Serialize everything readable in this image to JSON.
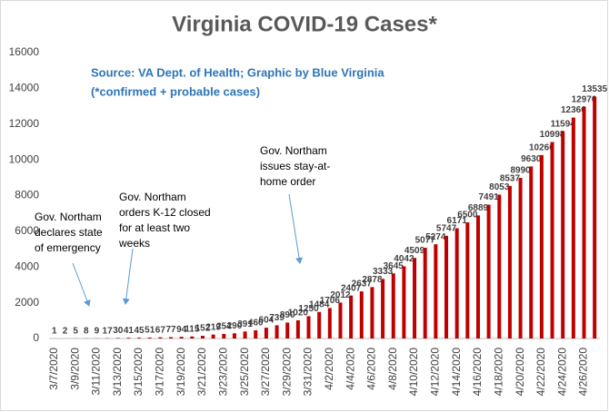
{
  "chart_data": {
    "type": "bar",
    "title": "Virginia COVID-19 Cases*",
    "subtitle": [
      "Source: VA Dept. of Health; Graphic by Blue Virginia",
      "(*confirmed + probable cases)"
    ],
    "categories": [
      "3/7/2020",
      null,
      "3/9/2020",
      null,
      "3/11/2020",
      null,
      "3/13/2020",
      null,
      "3/15/2020",
      null,
      "3/17/2020",
      null,
      "3/19/2020",
      null,
      "3/21/2020",
      null,
      "3/23/2020",
      null,
      "3/25/2020",
      null,
      "3/27/2020",
      null,
      "3/29/2020",
      null,
      "3/31/2020",
      null,
      "4/2/2020",
      null,
      "4/4/2020",
      null,
      "4/6/2020",
      null,
      "4/8/2020",
      null,
      "4/10/2020",
      null,
      "4/12/2020",
      null,
      "4/14/2020",
      null,
      "4/16/2020",
      null,
      "4/18/2020",
      null,
      "4/20/2020",
      null,
      "4/22/2020",
      null,
      "4/24/2020",
      null,
      "4/26/2020",
      null
    ],
    "values": [
      1,
      2,
      5,
      8,
      9,
      17,
      30,
      41,
      45,
      51,
      67,
      77,
      94,
      115,
      152,
      219,
      254,
      290,
      391,
      460,
      604,
      739,
      890,
      1020,
      1250,
      1484,
      1706,
      2012,
      2407,
      2637,
      2878,
      3333,
      3645,
      4042,
      4509,
      5077,
      5274,
      5747,
      6171,
      6500,
      6889,
      7491,
      8053,
      8537,
      8990,
      9630,
      10266,
      10998,
      11594,
      12366,
      12970,
      13535
    ],
    "color": "#c00000",
    "ylim": [
      0,
      16000
    ],
    "yticks": [
      0,
      2000,
      4000,
      6000,
      8000,
      10000,
      12000,
      14000,
      16000
    ],
    "grid": false,
    "annotations": [
      {
        "lines": [
          "Gov. Northam",
          "declares state",
          "of emergency"
        ]
      },
      {
        "lines": [
          "Gov. Northam",
          "orders K-12 closed",
          "for at least two",
          "weeks"
        ]
      },
      {
        "lines": [
          "Gov. Northam",
          "issues stay-at-",
          "home order"
        ]
      }
    ]
  }
}
